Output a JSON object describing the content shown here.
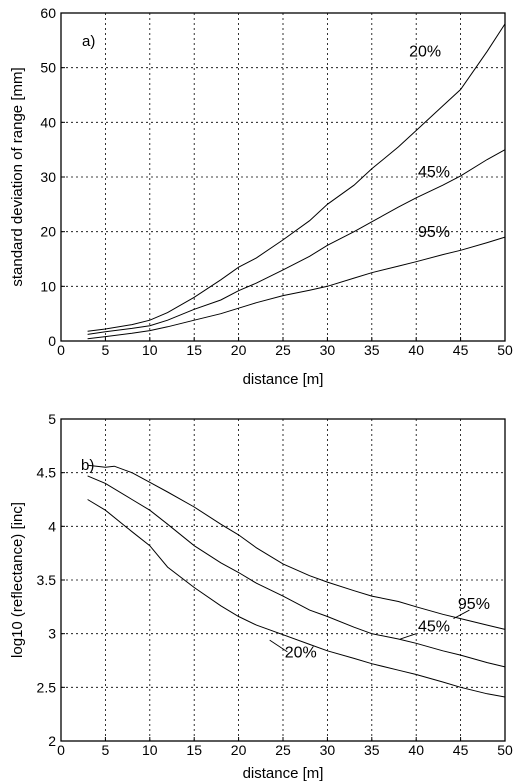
{
  "chart_data": [
    {
      "type": "line",
      "panel_label": "a)",
      "xlabel": "distance [m]",
      "ylabel": "standard deviation of range [mm]",
      "xlim": [
        0,
        50
      ],
      "ylim": [
        0,
        60
      ],
      "xticks": [
        0,
        5,
        10,
        15,
        20,
        25,
        30,
        35,
        40,
        45,
        50
      ],
      "yticks": [
        0,
        10,
        20,
        30,
        40,
        50,
        60
      ],
      "grid": true,
      "series": [
        {
          "name": "20%",
          "x": [
            3,
            5,
            8,
            10,
            12,
            15,
            18,
            20,
            22,
            25,
            28,
            30,
            33,
            35,
            38,
            40,
            43,
            45,
            48,
            50
          ],
          "values": [
            1.8,
            2.2,
            3.0,
            3.8,
            5.2,
            8.0,
            11.2,
            13.5,
            15.2,
            18.5,
            22.0,
            25.0,
            28.5,
            31.5,
            35.5,
            38.5,
            43.0,
            46.0,
            53.0,
            58.0
          ]
        },
        {
          "name": "45%",
          "x": [
            3,
            5,
            8,
            10,
            12,
            15,
            18,
            20,
            22,
            25,
            28,
            30,
            33,
            35,
            38,
            40,
            43,
            45,
            48,
            50
          ],
          "values": [
            1.2,
            1.7,
            2.3,
            2.8,
            3.8,
            5.8,
            7.5,
            9.2,
            10.6,
            13.0,
            15.5,
            17.5,
            20.0,
            21.8,
            24.5,
            26.2,
            28.5,
            30.2,
            33.2,
            35.0
          ]
        },
        {
          "name": "95%",
          "x": [
            3,
            5,
            8,
            10,
            12,
            15,
            18,
            20,
            22,
            25,
            28,
            30,
            33,
            35,
            38,
            40,
            43,
            45,
            48,
            50
          ],
          "values": [
            0.4,
            0.8,
            1.4,
            1.9,
            2.6,
            3.8,
            5.0,
            6.0,
            7.0,
            8.3,
            9.3,
            10.0,
            11.5,
            12.5,
            13.7,
            14.5,
            15.8,
            16.6,
            18.0,
            19.0
          ]
        }
      ],
      "labels": [
        {
          "text": "20%",
          "x": 41,
          "y": 52
        },
        {
          "text": "45%",
          "x": 42,
          "y": 30
        },
        {
          "text": "95%",
          "x": 42,
          "y": 19
        }
      ]
    },
    {
      "type": "line",
      "panel_label": "b)",
      "xlabel": "distance [m]",
      "ylabel": "log10 (reflectance) [inc]",
      "xlim": [
        0,
        50
      ],
      "ylim": [
        2,
        5
      ],
      "xticks": [
        0,
        5,
        10,
        15,
        20,
        25,
        30,
        35,
        40,
        45,
        50
      ],
      "yticks": [
        2,
        2.5,
        3,
        3.5,
        4,
        4.5,
        5
      ],
      "grid": true,
      "series": [
        {
          "name": "95%",
          "x": [
            3,
            5,
            6,
            8,
            10,
            12,
            15,
            18,
            20,
            22,
            25,
            28,
            30,
            33,
            35,
            38,
            40,
            43,
            45,
            48,
            50
          ],
          "values": [
            4.57,
            4.55,
            4.56,
            4.5,
            4.41,
            4.32,
            4.18,
            4.02,
            3.92,
            3.8,
            3.65,
            3.54,
            3.48,
            3.4,
            3.35,
            3.3,
            3.25,
            3.18,
            3.14,
            3.08,
            3.04
          ]
        },
        {
          "name": "45%",
          "x": [
            3,
            5,
            8,
            10,
            12,
            15,
            18,
            20,
            22,
            25,
            28,
            30,
            33,
            35,
            38,
            40,
            43,
            45,
            48,
            50
          ],
          "values": [
            4.47,
            4.4,
            4.25,
            4.15,
            4.02,
            3.82,
            3.66,
            3.57,
            3.47,
            3.35,
            3.22,
            3.16,
            3.06,
            3.0,
            2.95,
            2.91,
            2.84,
            2.8,
            2.73,
            2.69
          ]
        },
        {
          "name": "20%",
          "x": [
            3,
            5,
            8,
            10,
            12,
            15,
            18,
            20,
            22,
            25,
            28,
            30,
            33,
            35,
            38,
            40,
            43,
            45,
            48,
            50
          ],
          "values": [
            4.25,
            4.15,
            3.95,
            3.82,
            3.62,
            3.43,
            3.26,
            3.16,
            3.08,
            2.99,
            2.9,
            2.84,
            2.77,
            2.72,
            2.66,
            2.62,
            2.55,
            2.5,
            2.44,
            2.41
          ]
        }
      ],
      "labels": [
        {
          "text": "95%",
          "x": 46.5,
          "y": 3.23
        },
        {
          "text": "45%",
          "x": 42,
          "y": 3.02
        },
        {
          "text": "20%",
          "x": 27,
          "y": 2.78
        }
      ]
    }
  ]
}
